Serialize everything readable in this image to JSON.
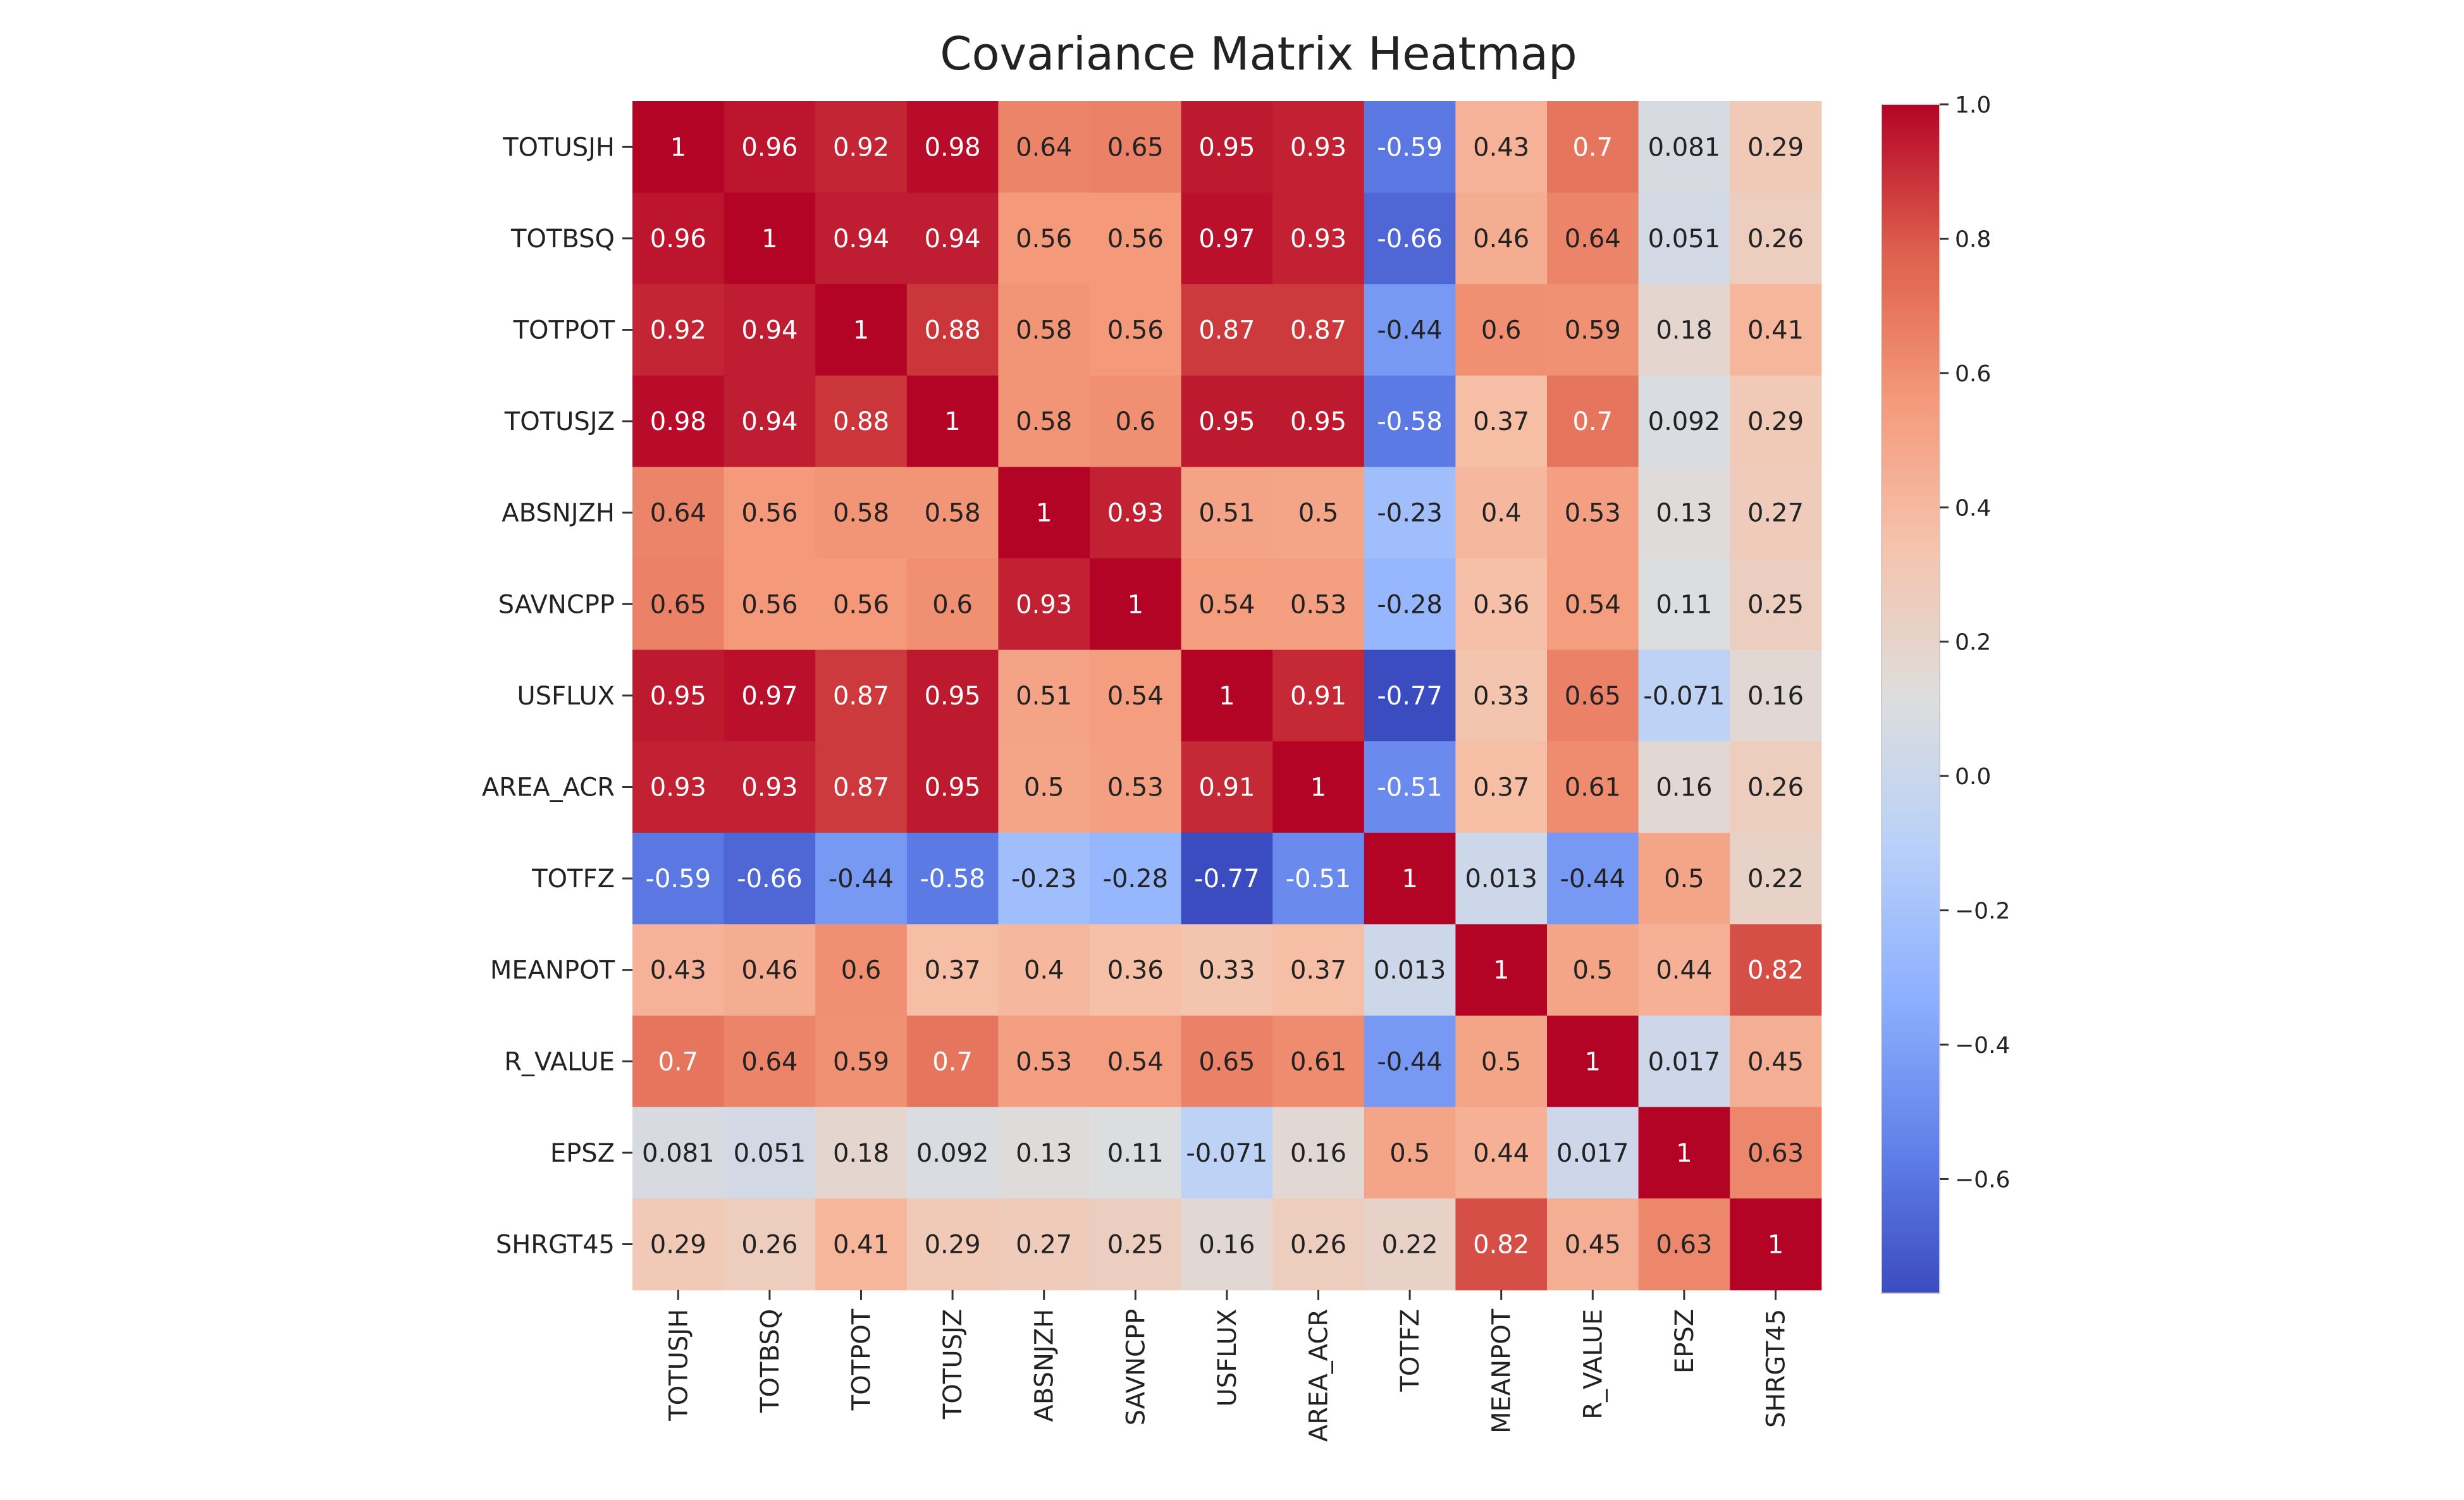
{
  "chart_data": {
    "type": "heatmap",
    "title": "Covariance Matrix Heatmap",
    "xlabel": "",
    "ylabel": "",
    "labels": [
      "TOTUSJH",
      "TOTBSQ",
      "TOTPOT",
      "TOTUSJZ",
      "ABSNJZH",
      "SAVNCPP",
      "USFLUX",
      "AREA_ACR",
      "TOTFZ",
      "MEANPOT",
      "R_VALUE",
      "EPSZ",
      "SHRGT45"
    ],
    "matrix": [
      [
        "1",
        "0.96",
        "0.92",
        "0.98",
        "0.64",
        "0.65",
        "0.95",
        "0.93",
        "-0.59",
        "0.43",
        "0.7",
        "0.081",
        "0.29"
      ],
      [
        "0.96",
        "1",
        "0.94",
        "0.94",
        "0.56",
        "0.56",
        "0.97",
        "0.93",
        "-0.66",
        "0.46",
        "0.64",
        "0.051",
        "0.26"
      ],
      [
        "0.92",
        "0.94",
        "1",
        "0.88",
        "0.58",
        "0.56",
        "0.87",
        "0.87",
        "-0.44",
        "0.6",
        "0.59",
        "0.18",
        "0.41"
      ],
      [
        "0.98",
        "0.94",
        "0.88",
        "1",
        "0.58",
        "0.6",
        "0.95",
        "0.95",
        "-0.58",
        "0.37",
        "0.7",
        "0.092",
        "0.29"
      ],
      [
        "0.64",
        "0.56",
        "0.58",
        "0.58",
        "1",
        "0.93",
        "0.51",
        "0.5",
        "-0.23",
        "0.4",
        "0.53",
        "0.13",
        "0.27"
      ],
      [
        "0.65",
        "0.56",
        "0.56",
        "0.6",
        "0.93",
        "1",
        "0.54",
        "0.53",
        "-0.28",
        "0.36",
        "0.54",
        "0.11",
        "0.25"
      ],
      [
        "0.95",
        "0.97",
        "0.87",
        "0.95",
        "0.51",
        "0.54",
        "1",
        "0.91",
        "-0.77",
        "0.33",
        "0.65",
        "-0.071",
        "0.16"
      ],
      [
        "0.93",
        "0.93",
        "0.87",
        "0.95",
        "0.5",
        "0.53",
        "0.91",
        "1",
        "-0.51",
        "0.37",
        "0.61",
        "0.16",
        "0.26"
      ],
      [
        "-0.59",
        "-0.66",
        "-0.44",
        "-0.58",
        "-0.23",
        "-0.28",
        "-0.77",
        "-0.51",
        "1",
        "0.013",
        "-0.44",
        "0.5",
        "0.22"
      ],
      [
        "0.43",
        "0.46",
        "0.6",
        "0.37",
        "0.4",
        "0.36",
        "0.33",
        "0.37",
        "0.013",
        "1",
        "0.5",
        "0.44",
        "0.82"
      ],
      [
        "0.7",
        "0.64",
        "0.59",
        "0.7",
        "0.53",
        "0.54",
        "0.65",
        "0.61",
        "-0.44",
        "0.5",
        "1",
        "0.017",
        "0.45"
      ],
      [
        "0.081",
        "0.051",
        "0.18",
        "0.092",
        "0.13",
        "0.11",
        "-0.071",
        "0.16",
        "0.5",
        "0.44",
        "0.017",
        "1",
        "0.63"
      ],
      [
        "0.29",
        "0.26",
        "0.41",
        "0.29",
        "0.27",
        "0.25",
        "0.16",
        "0.26",
        "0.22",
        "0.82",
        "0.45",
        "0.63",
        "1"
      ]
    ],
    "colormap": "coolwarm",
    "vmin": -0.77,
    "vmax": 1.0,
    "colorbar_ticks": [
      "1.0",
      "0.8",
      "0.6",
      "0.4",
      "0.2",
      "0.0",
      "−0.2",
      "−0.4",
      "−0.6"
    ],
    "colorbar_tick_values": [
      1.0,
      0.8,
      0.6,
      0.4,
      0.2,
      0.0,
      -0.2,
      -0.4,
      -0.6
    ],
    "colors": {
      "low": "#3b4cc0",
      "mid": "#dddddd",
      "high": "#b40426",
      "text": "#222222"
    }
  }
}
